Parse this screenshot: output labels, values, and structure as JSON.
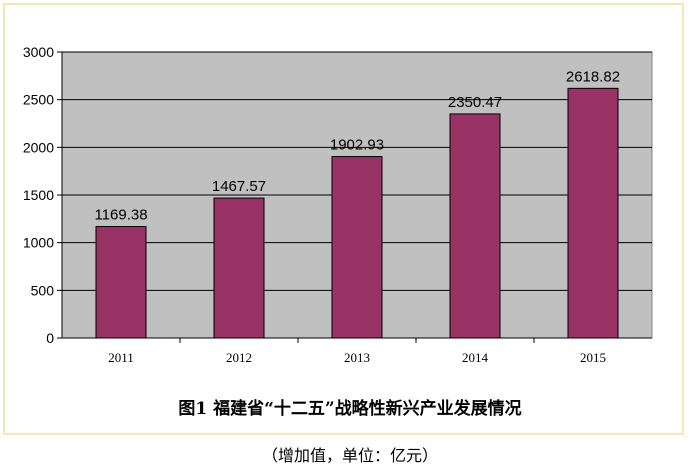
{
  "chart_data": {
    "type": "bar",
    "title": "图1 福建省“十二五”战略性新兴产业发展情况",
    "subtitle": "（增加值，单位：亿元）",
    "categories": [
      "2011",
      "2012",
      "2013",
      "2014",
      "2015"
    ],
    "values": [
      1169.38,
      1467.57,
      1902.93,
      2350.47,
      2618.82
    ],
    "data_labels": [
      "1169.38",
      "1467.57",
      "1902.93",
      "2350.47",
      "2618.82"
    ],
    "yticks": [
      "0",
      "500",
      "1000",
      "1500",
      "2000",
      "2500",
      "3000"
    ],
    "ylim": [
      0,
      3000
    ],
    "xlabel": "",
    "ylabel": "",
    "grid": true,
    "colors": {
      "bar": "#993366",
      "plot_bg": "#c0c0c0",
      "gridline": "#000000",
      "frame_border": "#f5e6b4"
    }
  }
}
